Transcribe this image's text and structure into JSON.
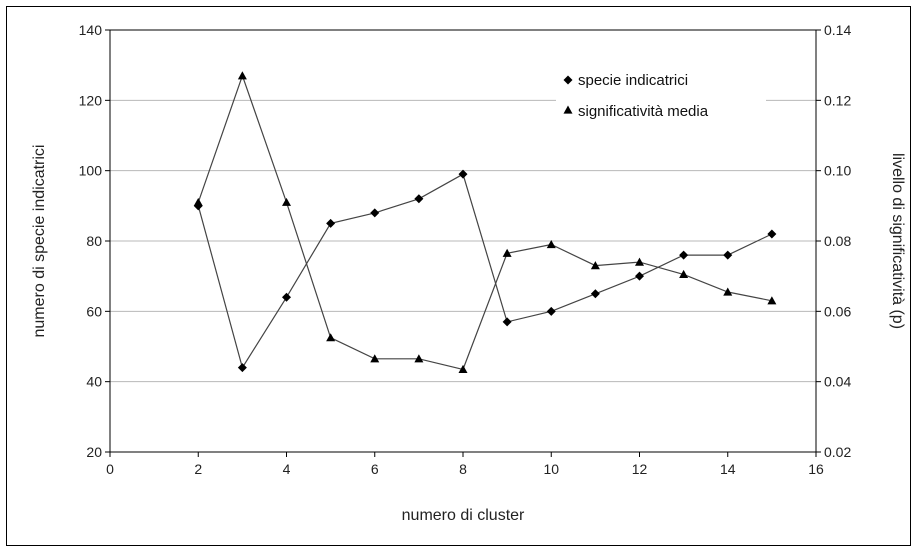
{
  "chart_data": {
    "type": "line",
    "xlabel": "numero di cluster",
    "ylabel": "numero di specie indicatrici",
    "y2label": "livello di significatività (p)",
    "xlim": [
      0,
      16
    ],
    "ylim": [
      20,
      140
    ],
    "y2lim": [
      0.02,
      0.14
    ],
    "x_ticks": [
      0,
      2,
      4,
      6,
      8,
      10,
      12,
      14,
      16
    ],
    "y_ticks": [
      20,
      40,
      60,
      80,
      100,
      120,
      140
    ],
    "y2_ticks": [
      "0.02",
      "0.04",
      "0.06",
      "0.08",
      "0.10",
      "0.12",
      "0.14"
    ],
    "grid": "horizontal",
    "legend_position": "top-right",
    "series": [
      {
        "name": "specie indicatrici",
        "axis": "left",
        "marker": "diamond",
        "x": [
          2,
          3,
          4,
          5,
          6,
          7,
          8,
          9,
          10,
          11,
          12,
          13,
          14,
          15
        ],
        "values": [
          90,
          44,
          64,
          85,
          88,
          92,
          99,
          57,
          60,
          65,
          70,
          76,
          76,
          82
        ]
      },
      {
        "name": "significatività media",
        "axis": "right",
        "marker": "triangle",
        "x": [
          2,
          3,
          4,
          5,
          6,
          7,
          8,
          9,
          10,
          11,
          12,
          13,
          14,
          15
        ],
        "values": [
          0.091,
          0.127,
          0.091,
          0.0525,
          0.0465,
          0.0465,
          0.0435,
          0.0765,
          0.079,
          0.073,
          0.074,
          0.0705,
          0.0655,
          0.063
        ]
      }
    ]
  }
}
